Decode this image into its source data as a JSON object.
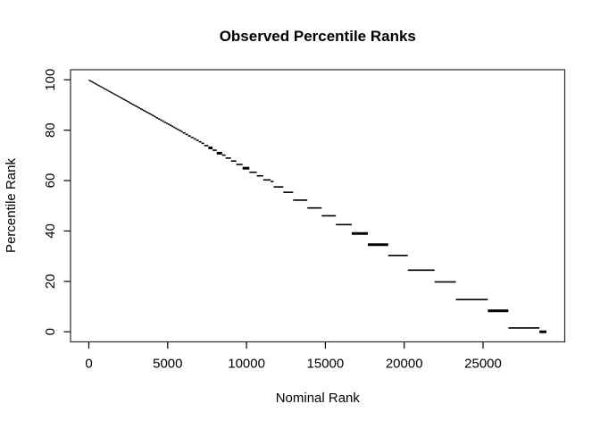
{
  "title": "Observed Percentile Ranks",
  "axes": {
    "x": {
      "label": "Nominal Rank"
    },
    "y": {
      "label": "Percentile Rank"
    }
  },
  "colors": {
    "foreground": "#000000",
    "background": "#ffffff",
    "box": "#2a2a2a"
  },
  "chart_data": {
    "type": "line",
    "subtype": "tied-rank-percentile-staircase",
    "title": "Observed Percentile Ranks",
    "xlabel": "Nominal Rank",
    "ylabel": "Percentile Rank",
    "xlim": [
      0,
      29020
    ],
    "ylim": [
      0,
      100
    ],
    "x_ticks": [
      0,
      5000,
      10000,
      15000,
      20000,
      25000
    ],
    "y_ticks": [
      0,
      20,
      40,
      60,
      80,
      100
    ],
    "grid": false,
    "legend": "none",
    "n_total": 29020,
    "percentile_rule": "each tie group of ranks [start,end] is drawn as a horizontal segment at percentile = 100 * (n_total - end) / n_total",
    "tie_groups_rle": [
      {
        "size": 56,
        "count": 46
      },
      {
        "size": 85,
        "count": 20
      },
      {
        "size": 120,
        "count": 14
      },
      {
        "size": 170,
        "count": 8
      },
      {
        "size": 265,
        "count": 3
      },
      {
        "size": 340,
        "count": 1
      },
      {
        "size": 225,
        "count": 1
      },
      {
        "size": 340,
        "count": 2
      },
      {
        "size": 395,
        "count": 1
      },
      {
        "size": 430,
        "count": 1
      },
      {
        "size": 470,
        "count": 1
      },
      {
        "size": 410,
        "count": 1
      },
      {
        "size": 470,
        "count": 1
      },
      {
        "size": 185,
        "count": 1
      },
      {
        "size": 620,
        "count": 2
      },
      {
        "size": 900,
        "count": 1
      },
      {
        "size": 910,
        "count": 1
      },
      {
        "size": 900,
        "count": 1
      },
      {
        "size": 1010,
        "count": 1
      },
      {
        "size": 1020,
        "count": 1
      },
      {
        "size": 1290,
        "count": 1
      },
      {
        "size": 1240,
        "count": 1
      },
      {
        "size": 1700,
        "count": 1
      },
      {
        "size": 1350,
        "count": 1
      },
      {
        "size": 2030,
        "count": 1
      },
      {
        "size": 1300,
        "count": 1
      },
      {
        "size": 1970,
        "count": 1
      },
      {
        "size": 444,
        "count": 1
      }
    ],
    "bold_group_indices": [
      89,
      91,
      96,
      107,
      108,
      113,
      115
    ]
  }
}
